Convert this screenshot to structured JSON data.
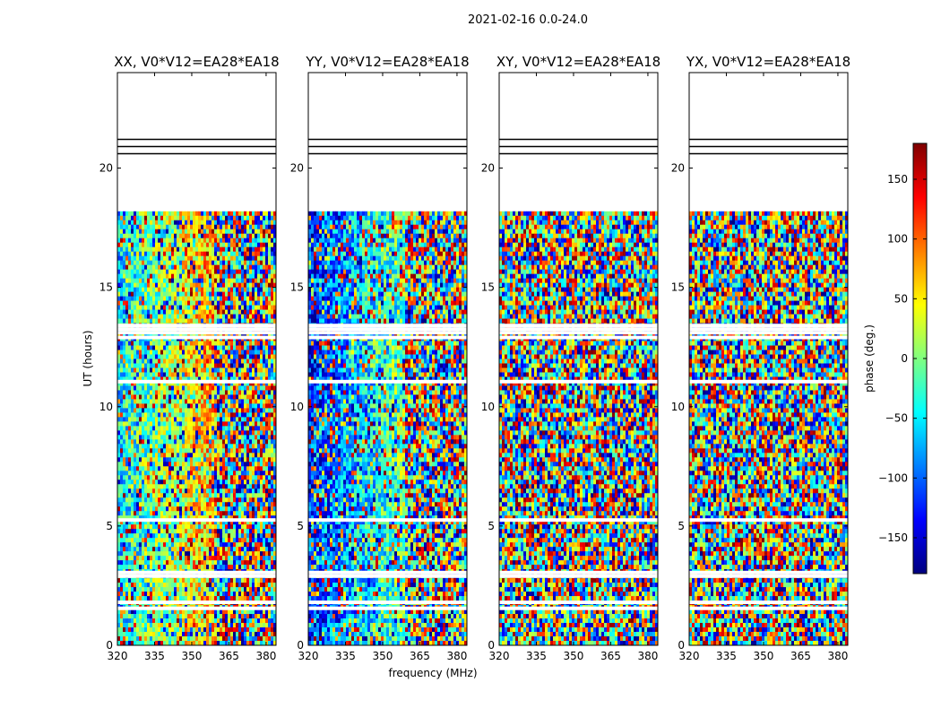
{
  "figure": {
    "suptitle": "2021-02-16 0.0-24.0",
    "xlabel": "frequency (MHz)",
    "ylabel": "UT (hours)",
    "colorbar_label": "phase (deg.)"
  },
  "chart_data": {
    "type": "heatmap",
    "colormap": "jet",
    "grid": false,
    "x_ticks": [
      "320",
      "335",
      "350",
      "365",
      "380"
    ],
    "y_ticks": [
      "0",
      "5",
      "10",
      "15",
      "20"
    ],
    "xlim": [
      320,
      384
    ],
    "ylim": [
      0,
      24
    ],
    "colorbar": {
      "ticks": [
        "150",
        "100",
        "50",
        "0",
        "−50",
        "−100",
        "−150"
      ],
      "tick_values": [
        150,
        100,
        50,
        0,
        -50,
        -100,
        -150
      ],
      "range": [
        -180,
        180
      ]
    },
    "panels": [
      {
        "title": "XX, V0*V12=EA28*EA18",
        "pattern": "smooth"
      },
      {
        "title": "YY, V0*V12=EA28*EA18",
        "pattern": "smooth"
      },
      {
        "title": "XY, V0*V12=EA28*EA18",
        "pattern": "noise"
      },
      {
        "title": "YX, V0*V12=EA28*EA18",
        "pattern": "noise"
      }
    ]
  }
}
